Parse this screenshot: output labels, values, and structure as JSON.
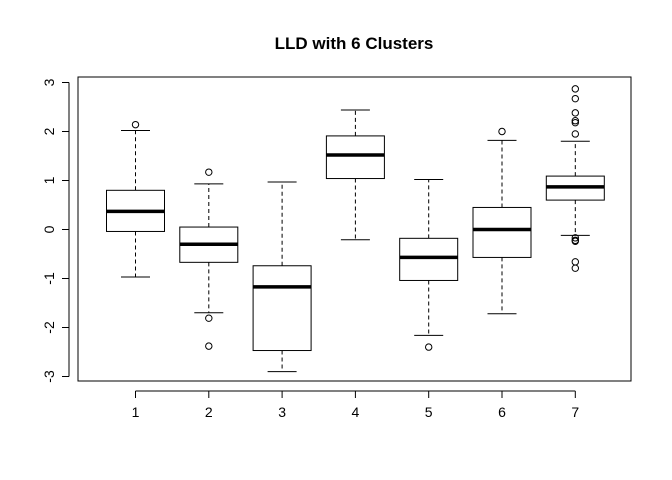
{
  "chart_data": {
    "type": "boxplot",
    "title": "LLD with 6 Clusters",
    "xlabel": "",
    "ylabel": "",
    "ylim": [
      -3.1,
      3.1
    ],
    "y_ticks": [
      -3,
      -2,
      -1,
      0,
      1,
      2,
      3
    ],
    "y_tick_labels": [
      "-3",
      "-2",
      "-1",
      "0",
      "1",
      "2",
      "3"
    ],
    "categories": [
      "1",
      "2",
      "3",
      "4",
      "5",
      "6",
      "7"
    ],
    "grid": false,
    "boxes": [
      {
        "category": "1",
        "whisker_low": -0.97,
        "q1": -0.04,
        "median": 0.37,
        "q3": 0.8,
        "whisker_high": 2.02,
        "outliers": [
          2.14
        ]
      },
      {
        "category": "2",
        "whisker_low": -1.7,
        "q1": -0.67,
        "median": -0.3,
        "q3": 0.05,
        "whisker_high": 0.93,
        "outliers": [
          1.17,
          -1.81,
          -2.38
        ]
      },
      {
        "category": "3",
        "whisker_low": -2.9,
        "q1": -2.47,
        "median": -1.17,
        "q3": -0.74,
        "whisker_high": 0.97,
        "outliers": []
      },
      {
        "category": "4",
        "whisker_low": -0.21,
        "q1": 1.04,
        "median": 1.52,
        "q3": 1.91,
        "whisker_high": 2.44,
        "outliers": []
      },
      {
        "category": "5",
        "whisker_low": -2.16,
        "q1": -1.04,
        "median": -0.57,
        "q3": -0.18,
        "whisker_high": 1.02,
        "outliers": [
          -2.4
        ]
      },
      {
        "category": "6",
        "whisker_low": -1.72,
        "q1": -0.57,
        "median": 0.0,
        "q3": 0.45,
        "whisker_high": 1.82,
        "outliers": [
          2.0
        ]
      },
      {
        "category": "7",
        "whisker_low": -0.12,
        "q1": 0.6,
        "median": 0.87,
        "q3": 1.09,
        "whisker_high": 1.8,
        "outliers": [
          2.87,
          2.67,
          2.38,
          2.22,
          2.18,
          1.95,
          -0.17,
          -0.22,
          -0.24,
          -0.66,
          -0.79
        ]
      }
    ]
  }
}
